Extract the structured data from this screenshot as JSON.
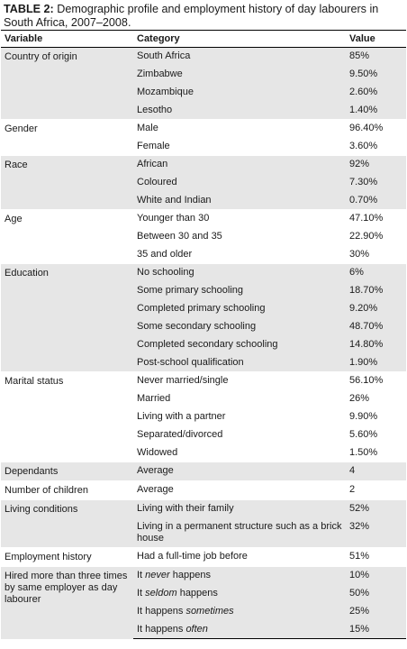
{
  "caption": {
    "label": "TABLE 2:",
    "text": " Demographic profile and employment history of day labourers in South Africa, 2007–2008."
  },
  "header": {
    "variable": "Variable",
    "category": "Category",
    "value": "Value"
  },
  "groups": [
    {
      "variable": "Country of origin",
      "shade": true,
      "rows": [
        {
          "category": "South Africa",
          "value": "85%"
        },
        {
          "category": "Zimbabwe",
          "value": "9.50%"
        },
        {
          "category": "Mozambique",
          "value": "2.60%"
        },
        {
          "category": "Lesotho",
          "value": "1.40%"
        }
      ]
    },
    {
      "variable": "Gender",
      "shade": false,
      "rows": [
        {
          "category": "Male",
          "value": "96.40%"
        },
        {
          "category": "Female",
          "value": "3.60%"
        }
      ]
    },
    {
      "variable": "Race",
      "shade": true,
      "rows": [
        {
          "category": "African",
          "value": "92%"
        },
        {
          "category": "Coloured",
          "value": "7.30%"
        },
        {
          "category": "White and Indian",
          "value": "0.70%"
        }
      ]
    },
    {
      "variable": "Age",
      "shade": false,
      "rows": [
        {
          "category": "Younger than 30",
          "value": "47.10%"
        },
        {
          "category": "Between 30 and 35",
          "value": "22.90%"
        },
        {
          "category": "35 and older",
          "value": "30%"
        }
      ]
    },
    {
      "variable": "Education",
      "shade": true,
      "rows": [
        {
          "category": "No schooling",
          "value": "6%"
        },
        {
          "category": "Some primary schooling",
          "value": "18.70%"
        },
        {
          "category": "Completed primary schooling",
          "value": "9.20%"
        },
        {
          "category": "Some secondary schooling",
          "value": "48.70%"
        },
        {
          "category": "Completed secondary schooling",
          "value": "14.80%"
        },
        {
          "category": "Post-school qualification",
          "value": "1.90%"
        }
      ]
    },
    {
      "variable": "Marital status",
      "shade": false,
      "rows": [
        {
          "category": "Never married/single",
          "value": "56.10%"
        },
        {
          "category": "Married",
          "value": "26%"
        },
        {
          "category": "Living with a partner",
          "value": "9.90%"
        },
        {
          "category": "Separated/divorced",
          "value": "5.60%"
        },
        {
          "category": "Widowed",
          "value": "1.50%"
        }
      ]
    },
    {
      "variable": "Dependants",
      "shade": true,
      "rows": [
        {
          "category": "Average",
          "value": "4"
        }
      ]
    },
    {
      "variable": "Number of children",
      "shade": false,
      "rows": [
        {
          "category": "Average",
          "value": "2"
        }
      ]
    },
    {
      "variable": "Living conditions",
      "shade": true,
      "rows": [
        {
          "category": "Living with their family",
          "value": "52%"
        },
        {
          "category": "Living in a permanent structure such as a brick house",
          "value": "32%",
          "tall": true
        }
      ]
    },
    {
      "variable": "Employment history",
      "shade": false,
      "rows": [
        {
          "category": "Had a full-time job before",
          "value": "51%"
        }
      ]
    },
    {
      "variable": "Hired more than three times by same employer as day labourer",
      "shade": true,
      "rows": [
        {
          "pre": "It ",
          "em": "never",
          "post": " happens",
          "value": "10%"
        },
        {
          "pre": "It ",
          "em": "seldom",
          "post": " happens",
          "value": "50%"
        },
        {
          "pre": "It happens ",
          "em": "sometimes",
          "post": "",
          "value": "25%"
        },
        {
          "pre": "It happens ",
          "em": "often",
          "post": "",
          "value": "15%"
        }
      ]
    }
  ]
}
